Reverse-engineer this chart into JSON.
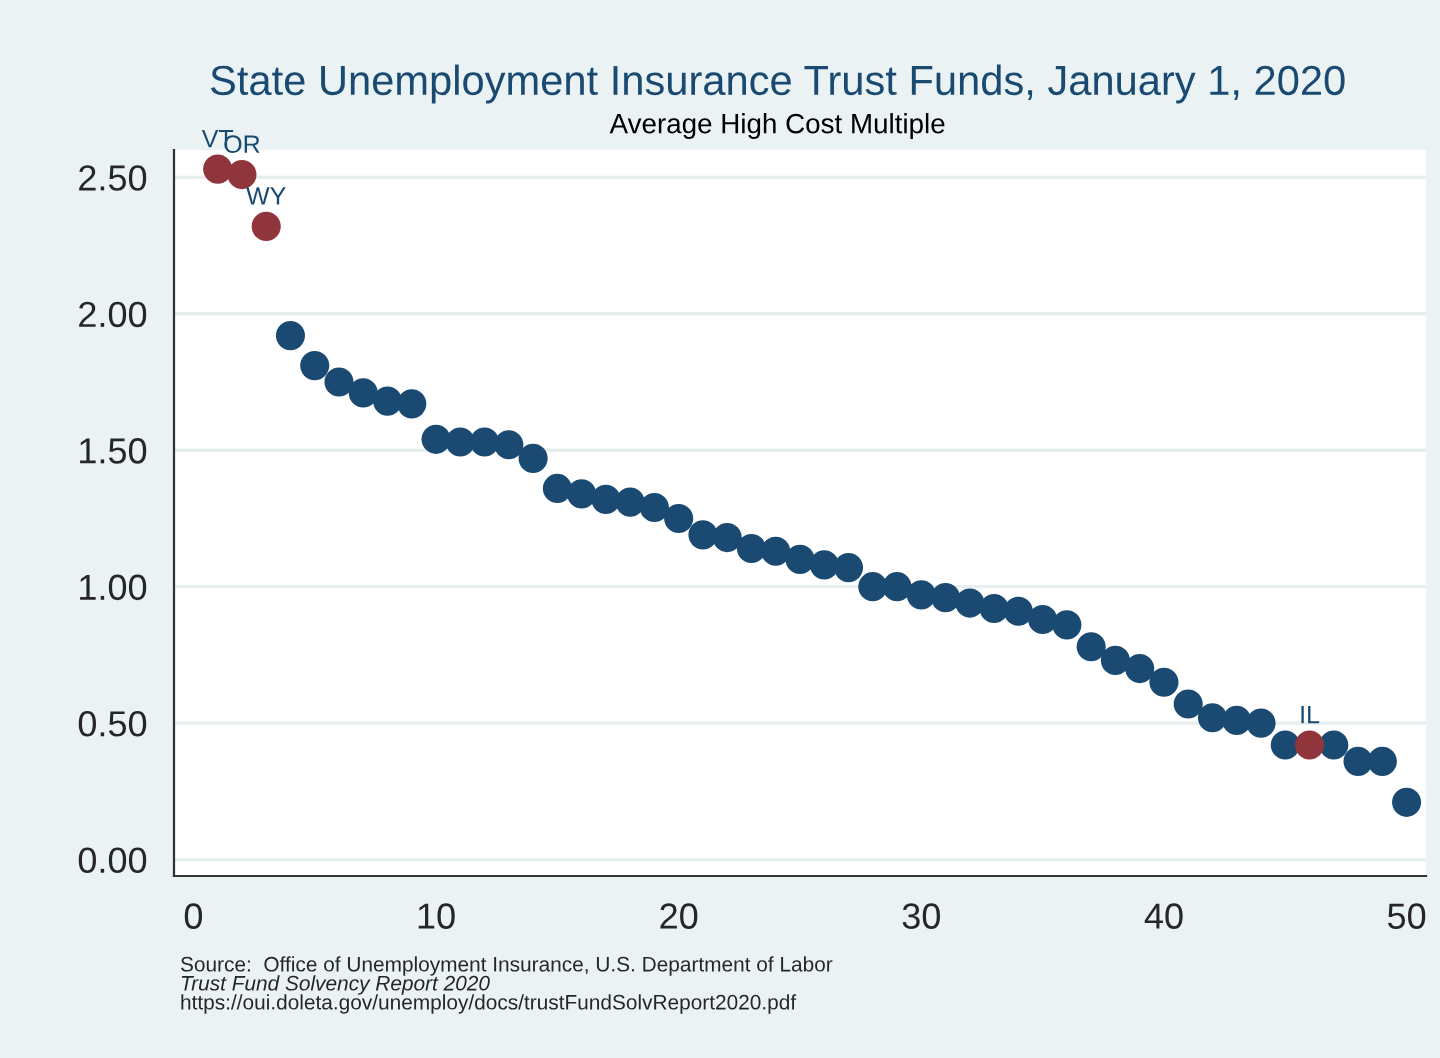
{
  "chart_data": {
    "type": "scatter",
    "title": "State Unemployment Insurance Trust Funds, January 1, 2020",
    "subtitle": "Average High Cost Multiple",
    "series": [
      {
        "color": "#1a4a72",
        "x": [
          4,
          5,
          6,
          7,
          8,
          9,
          10,
          11,
          12,
          13,
          14,
          15,
          16,
          17,
          18,
          19,
          20,
          21,
          22,
          23,
          24,
          25,
          26,
          27,
          28,
          29,
          30,
          31,
          32,
          33,
          34,
          35,
          36,
          37,
          38,
          39,
          40,
          41,
          42,
          43,
          44,
          45,
          47,
          48,
          49,
          50
        ],
        "values": [
          1.92,
          1.81,
          1.75,
          1.71,
          1.68,
          1.67,
          1.54,
          1.53,
          1.53,
          1.52,
          1.47,
          1.36,
          1.34,
          1.32,
          1.31,
          1.29,
          1.25,
          1.19,
          1.18,
          1.14,
          1.13,
          1.1,
          1.08,
          1.07,
          1.0,
          1.0,
          0.97,
          0.96,
          0.94,
          0.92,
          0.91,
          0.88,
          0.86,
          0.78,
          0.73,
          0.7,
          0.65,
          0.57,
          0.52,
          0.51,
          0.5,
          0.42,
          0.42,
          0.36,
          0.36,
          0.21
        ]
      },
      {
        "color": "#90353b",
        "x": [
          1,
          2,
          3,
          46
        ],
        "values": [
          2.53,
          2.51,
          2.32,
          0.42
        ]
      }
    ],
    "annotations": [
      {
        "text": "VT",
        "x": 1,
        "y": 2.53
      },
      {
        "text": "OR",
        "x": 2,
        "y": 2.51
      },
      {
        "text": "WY",
        "x": 3,
        "y": 2.32
      },
      {
        "text": "IL",
        "x": 46,
        "y": 0.42
      },
      "Source:  Office of Unemployment Insurance, U.S. Department of Labor",
      "Trust Fund Solvency Report 2020",
      "https://oui.doleta.gov/unemploy/docs/trustFundSolvReport2020.pdf"
    ],
    "xlim": [
      -0.8,
      50.8
    ],
    "xticks": [
      0,
      10,
      20,
      30,
      40,
      50
    ],
    "ylim": [
      -0.06,
      2.6
    ],
    "yticks": [
      {
        "value": 0,
        "label": "0.00"
      },
      {
        "value": 0.5,
        "label": "0.50"
      },
      {
        "value": 1,
        "label": "1.00"
      },
      {
        "value": 1.5,
        "label": "1.50"
      },
      {
        "value": 2,
        "label": "2.00"
      },
      {
        "value": 2.5,
        "label": "2.50"
      }
    ],
    "grid": "y",
    "marker": "circle"
  }
}
